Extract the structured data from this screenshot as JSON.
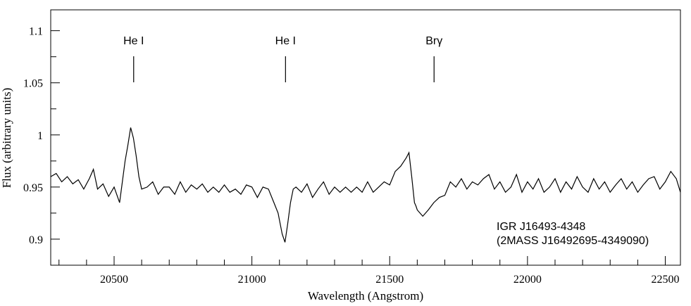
{
  "chart_data": {
    "type": "line",
    "title": "",
    "xlabel": "Wavelength (Angstrom)",
    "ylabel": "Flux (arbitrary units)",
    "xlim": [
      20270,
      22555
    ],
    "ylim": [
      0.875,
      1.12
    ],
    "x_ticks": [
      20500,
      21000,
      21500,
      22000,
      22500
    ],
    "x_tick_labels": [
      "20500",
      "21000",
      "21500",
      "22000",
      "22500"
    ],
    "x_minor_step": 100,
    "y_ticks": [
      0.9,
      0.95,
      1.0,
      1.05,
      1.1
    ],
    "y_tick_labels": [
      "0.9",
      "0.95",
      "1",
      "1.05",
      "1.1"
    ],
    "y_minor_step": 0.025,
    "grid": false,
    "line_color": "#000000",
    "annotations": [
      {
        "text": "He I",
        "x": 20571
      },
      {
        "text": "He I",
        "x": 21122
      },
      {
        "text": "Brγ",
        "x": 21661
      }
    ],
    "object_labels": [
      "IGR J16493-4348",
      "(2MASS J16492695-4349090)"
    ],
    "series": [
      {
        "x": [
          20270,
          20290,
          20310,
          20330,
          20350,
          20370,
          20390,
          20410,
          20425,
          20440,
          20460,
          20480,
          20500,
          20520,
          20530,
          20540,
          20550,
          20560,
          20570,
          20580,
          20590,
          20600,
          20620,
          20640,
          20660,
          20680,
          20700,
          20720,
          20740,
          20760,
          20780,
          20800,
          20820,
          20840,
          20860,
          20880,
          20900,
          20920,
          20940,
          20960,
          20980,
          21000,
          21020,
          21040,
          21060,
          21080,
          21095,
          21110,
          21120,
          21130,
          21140,
          21150,
          21160,
          21180,
          21200,
          21220,
          21240,
          21260,
          21280,
          21300,
          21320,
          21340,
          21360,
          21380,
          21400,
          21420,
          21440,
          21460,
          21480,
          21500,
          21520,
          21540,
          21560,
          21570,
          21580,
          21590,
          21595,
          21600,
          21620,
          21640,
          21660,
          21680,
          21700,
          21720,
          21740,
          21760,
          21780,
          21800,
          21820,
          21840,
          21860,
          21880,
          21900,
          21920,
          21940,
          21960,
          21980,
          22000,
          22020,
          22040,
          22060,
          22080,
          22100,
          22120,
          22140,
          22160,
          22180,
          22200,
          22220,
          22240,
          22260,
          22280,
          22300,
          22320,
          22340,
          22360,
          22380,
          22400,
          22420,
          22440,
          22460,
          22480,
          22500,
          22520,
          22540,
          22555
        ],
        "y": [
          0.96,
          0.963,
          0.955,
          0.96,
          0.953,
          0.957,
          0.948,
          0.958,
          0.967,
          0.948,
          0.953,
          0.941,
          0.95,
          0.935,
          0.955,
          0.975,
          0.99,
          1.007,
          0.997,
          0.98,
          0.96,
          0.948,
          0.95,
          0.955,
          0.943,
          0.95,
          0.95,
          0.943,
          0.955,
          0.945,
          0.952,
          0.948,
          0.953,
          0.945,
          0.95,
          0.945,
          0.952,
          0.945,
          0.948,
          0.943,
          0.952,
          0.95,
          0.94,
          0.95,
          0.948,
          0.935,
          0.925,
          0.905,
          0.897,
          0.915,
          0.935,
          0.948,
          0.95,
          0.945,
          0.953,
          0.94,
          0.948,
          0.955,
          0.943,
          0.95,
          0.945,
          0.95,
          0.945,
          0.95,
          0.945,
          0.955,
          0.945,
          0.95,
          0.955,
          0.952,
          0.965,
          0.97,
          0.978,
          0.983,
          0.96,
          0.935,
          0.932,
          0.928,
          0.922,
          0.928,
          0.935,
          0.94,
          0.942,
          0.955,
          0.95,
          0.958,
          0.948,
          0.955,
          0.952,
          0.958,
          0.962,
          0.948,
          0.955,
          0.945,
          0.95,
          0.962,
          0.945,
          0.955,
          0.948,
          0.958,
          0.945,
          0.95,
          0.958,
          0.945,
          0.955,
          0.948,
          0.96,
          0.95,
          0.945,
          0.958,
          0.948,
          0.955,
          0.945,
          0.952,
          0.958,
          0.948,
          0.955,
          0.945,
          0.952,
          0.958,
          0.96,
          0.948,
          0.955,
          0.965,
          0.958,
          0.945
        ]
      }
    ]
  }
}
